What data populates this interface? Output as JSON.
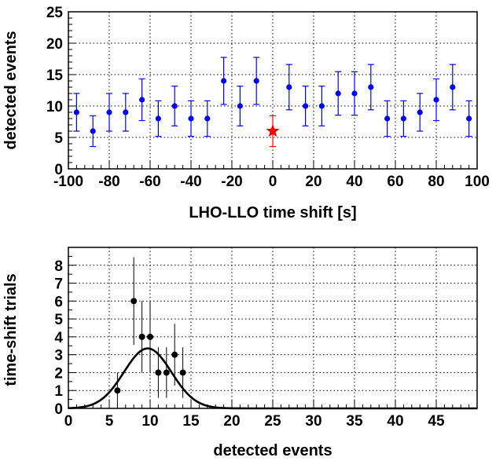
{
  "chart_data": [
    {
      "type": "scatter",
      "xlabel": "LHO-LLO time shift [s]",
      "ylabel": "detected events",
      "xlim": [
        -100,
        100
      ],
      "ylim": [
        0,
        25
      ],
      "xticks": [
        -100,
        -80,
        -60,
        -40,
        -20,
        0,
        20,
        40,
        60,
        80,
        100
      ],
      "yticks": [
        0,
        5,
        10,
        15,
        20,
        25
      ],
      "grid": true,
      "colors": {
        "points": "#0000ff",
        "highlight": "#ff0000"
      },
      "series": [
        {
          "marker": "circle",
          "x": [
            -96,
            -88,
            -80,
            -72,
            -64,
            -56,
            -48,
            -40,
            -32,
            -24,
            -16,
            -8,
            8,
            16,
            24,
            32,
            40,
            48,
            56,
            64,
            72,
            80,
            88,
            96
          ],
          "y": [
            9,
            6,
            9,
            9,
            11,
            8,
            10,
            8,
            8,
            14,
            10,
            14,
            13,
            10,
            10,
            12,
            12,
            13,
            8,
            8,
            9,
            11,
            13,
            8
          ]
        },
        {
          "marker": "star",
          "x": [
            0
          ],
          "y": [
            6
          ]
        }
      ]
    },
    {
      "type": "scatter",
      "xlabel": "detected events",
      "ylabel": "time-shift trials",
      "xlim": [
        0,
        50
      ],
      "ylim": [
        0,
        9
      ],
      "xticks": [
        0,
        5,
        10,
        15,
        20,
        25,
        30,
        35,
        40,
        45
      ],
      "yticks": [
        0,
        1,
        2,
        3,
        4,
        5,
        6,
        7,
        8
      ],
      "grid": true,
      "colors": {
        "points": "#000000",
        "curve": "#000000"
      },
      "series": [
        {
          "marker": "circle",
          "x": [
            6,
            8,
            9,
            10,
            11,
            12,
            13,
            14
          ],
          "y": [
            1,
            6,
            4,
            4,
            2,
            2,
            3,
            2
          ]
        },
        {
          "type": "line",
          "curve": "gaussian",
          "peak": 3.35,
          "mean": 9.7,
          "sigma": 2.9
        }
      ]
    }
  ]
}
